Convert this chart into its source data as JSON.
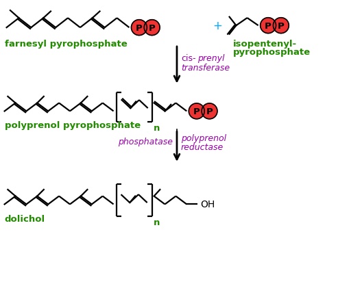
{
  "bg_color": "#ffffff",
  "green_color": "#228B00",
  "purple_color": "#9900AA",
  "red_color": "#EE3333",
  "black_color": "#000000",
  "cyan_color": "#00AAFF",
  "labels": {
    "farnesyl": "farnesyl pyrophosphate",
    "isopentenyl_line1": "isopentenyl-",
    "isopentenyl_line2": "pyrophosphate",
    "polyprenol": "polyprenol pyrophosphate",
    "dolichol": "dolichol",
    "oh": "OH",
    "n": "n",
    "plus": "+"
  },
  "figsize": [
    5.09,
    4.35
  ],
  "dpi": 100
}
